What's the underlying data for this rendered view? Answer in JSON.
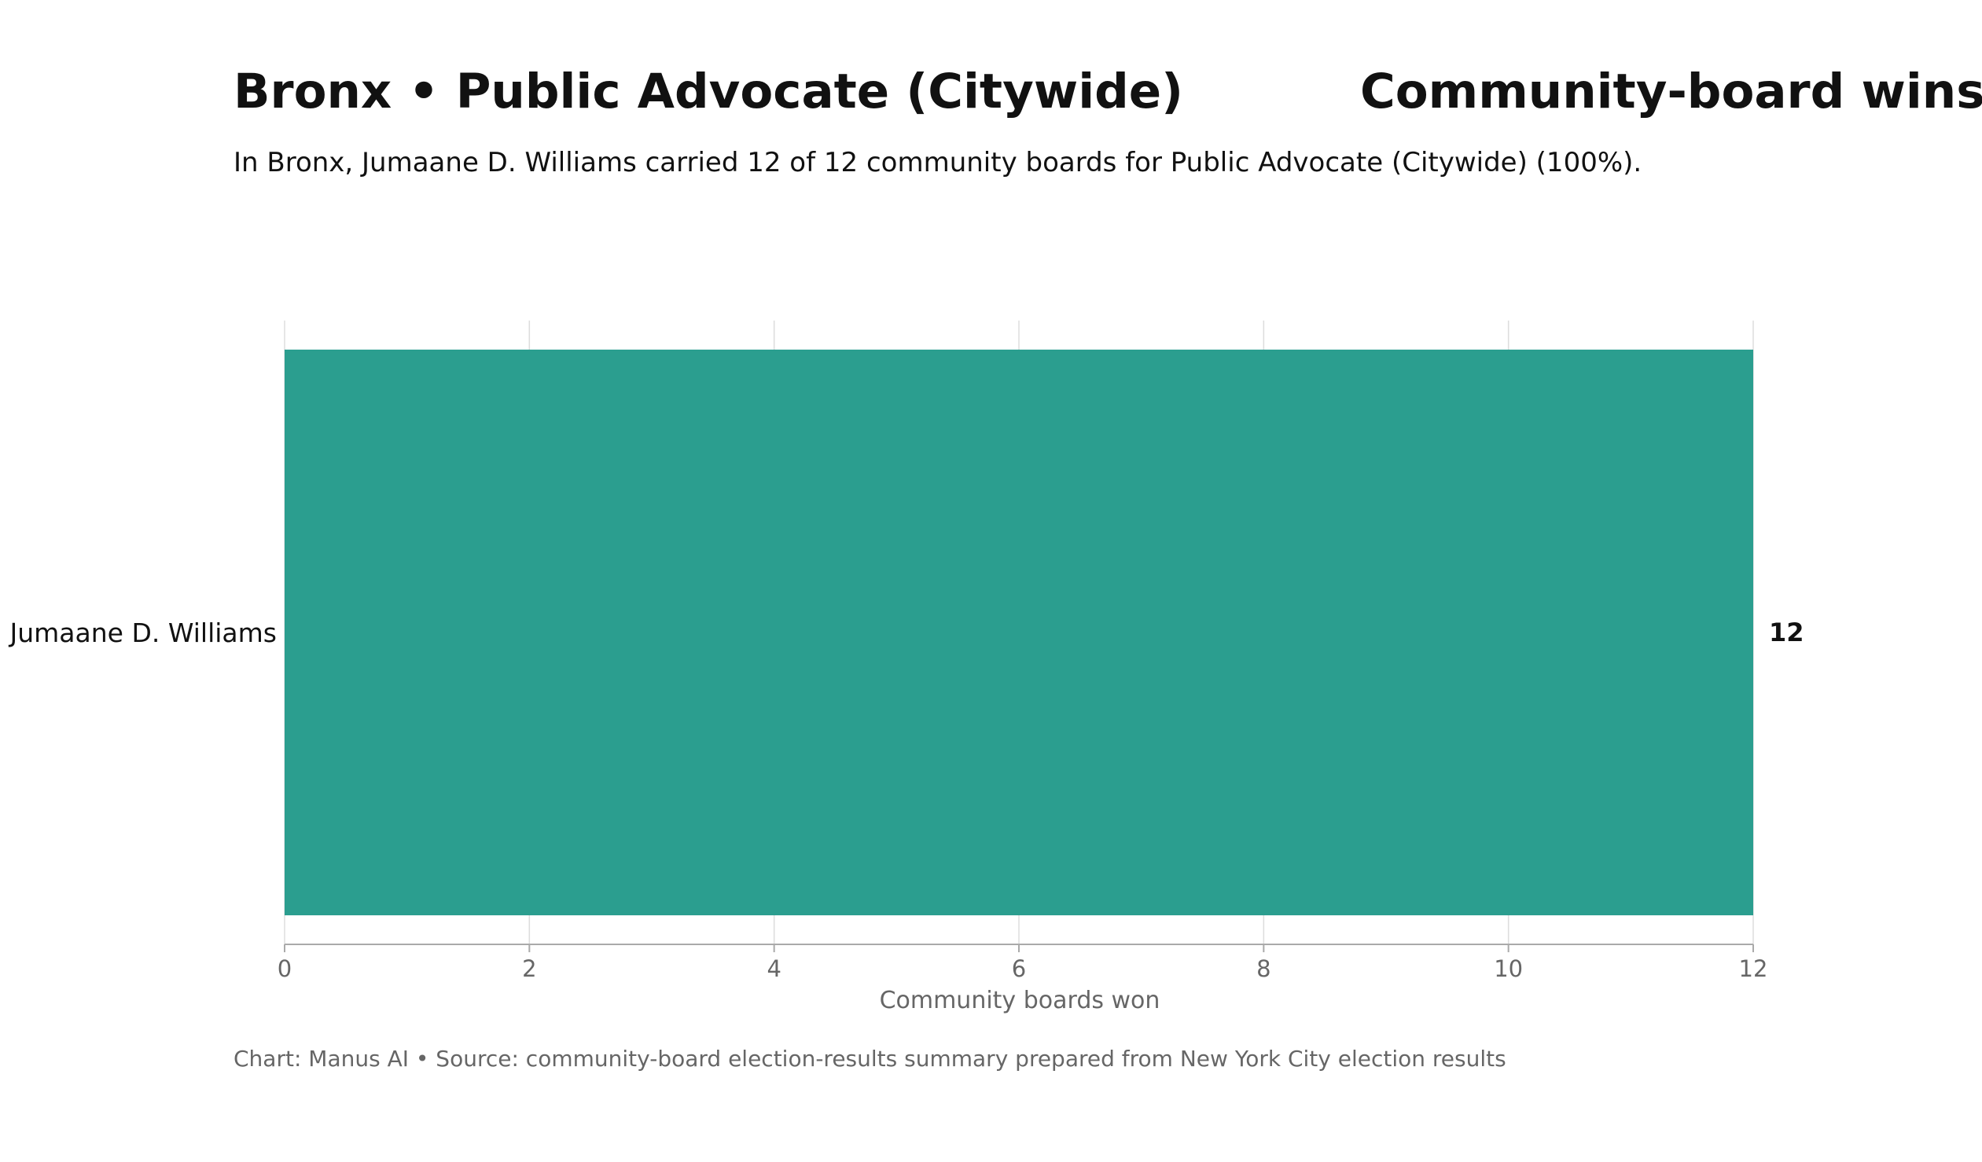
{
  "title_left": "Bronx • Public Advocate (Citywide)",
  "title_right": "Community-board wins",
  "subtitle": "In Bronx, Jumaane D. Williams carried 12 of 12 community boards for Public Advocate (Citywide) (100%).",
  "footnote": "Chart: Manus AI • Source: community-board election-results summary prepared from New York City election results",
  "colors": {
    "bar": "#2b9e8f"
  },
  "chart_data": {
    "type": "bar",
    "orientation": "horizontal",
    "categories": [
      "Jumaane D. Williams"
    ],
    "values": [
      12
    ],
    "value_labels": [
      "12"
    ],
    "xlabel": "Community boards won",
    "ylabel": "",
    "xlim": [
      0,
      12
    ],
    "xticks": [
      0,
      2,
      4,
      6,
      8,
      10,
      12
    ],
    "xtick_labels": [
      "0",
      "2",
      "4",
      "6",
      "8",
      "10",
      "12"
    ],
    "grid": "vertical",
    "legend": "none"
  }
}
